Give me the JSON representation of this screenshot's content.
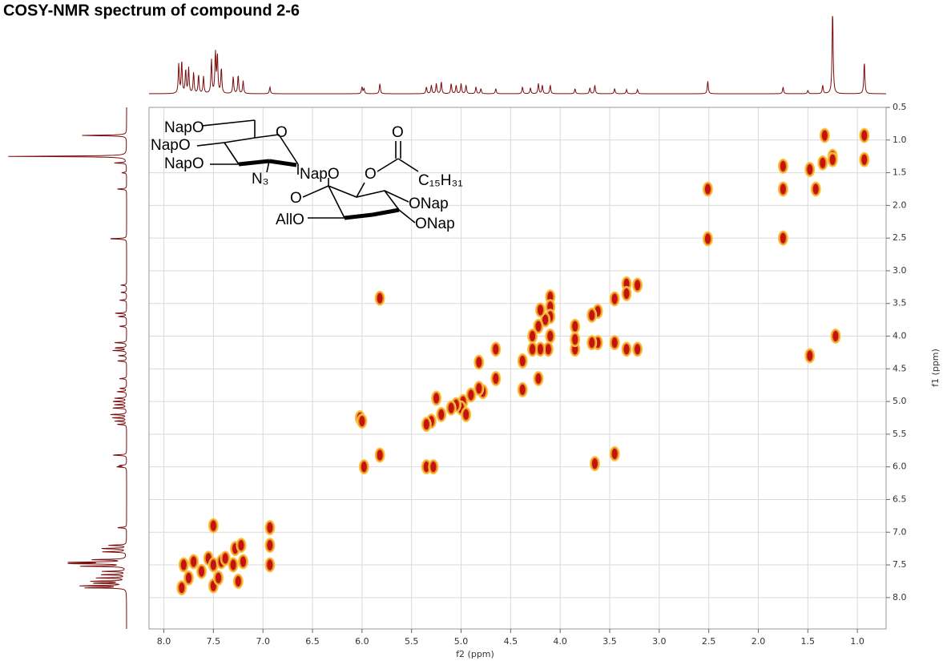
{
  "chart_data": {
    "type": "cosy",
    "title": "COSY-NMR spectrum of compound 2-6",
    "xlabel": "f2 (ppm)",
    "ylabel": "f1 (ppm)",
    "xlim": [
      8.15,
      0.71
    ],
    "ylim": [
      0.5,
      8.48
    ],
    "xticks": [
      {
        "value": 8,
        "label": "8.0"
      },
      7.5,
      {
        "value": 7,
        "label": "7.0"
      },
      6.5,
      {
        "value": 6,
        "label": "6.0"
      },
      5.5,
      {
        "value": 5,
        "label": "5.0"
      },
      4.5,
      {
        "value": 4,
        "label": "4.0"
      },
      3.5,
      {
        "value": 3,
        "label": "3.0"
      },
      2.5,
      {
        "value": 2,
        "label": "2.0"
      },
      1.5,
      {
        "value": 1,
        "label": "1.0"
      }
    ],
    "yticks": [
      0.5,
      {
        "value": 1,
        "label": "1.0"
      },
      1.5,
      {
        "value": 2,
        "label": "2.0"
      },
      2.5,
      {
        "value": 3,
        "label": "3.0"
      },
      3.5,
      {
        "value": 4,
        "label": "4.0"
      },
      4.5,
      {
        "value": 5,
        "label": "5.0"
      },
      5.5,
      {
        "value": 6,
        "label": "6.0"
      },
      6.5,
      {
        "value": 7,
        "label": "7.0"
      },
      7.5,
      {
        "value": 8,
        "label": "8.0"
      }
    ],
    "grid": true,
    "contour_colors": [
      "#f7c948",
      "#f28c28",
      "#c0140c"
    ],
    "projection_color": "#7a0c0c",
    "peaks": {
      "x": [
        0.93,
        0.93,
        1.25,
        1.33,
        1.25,
        1.35,
        1.48,
        1.75,
        1.75,
        1.75,
        1.42,
        2.51,
        2.51,
        3.22,
        3.33,
        3.33,
        3.22,
        3.33,
        3.45,
        3.45,
        3.45,
        3.62,
        3.68,
        3.62,
        3.68,
        3.65,
        3.85,
        3.85,
        3.85,
        4.1,
        4.1,
        4.1,
        4.1,
        4.12,
        4.15,
        4.2,
        4.22,
        4.2,
        4.22,
        4.28,
        4.28,
        4.38,
        4.38,
        4.65,
        4.65,
        4.78,
        4.82,
        4.82,
        4.9,
        4.98,
        5.0,
        5.05,
        5.1,
        5.2,
        5.25,
        5.3,
        5.35,
        4.95,
        5.35,
        5.28,
        5.82,
        5.82,
        5.98,
        6.02,
        6.0,
        6.93,
        6.93,
        6.93,
        7.82,
        7.8,
        7.75,
        7.7,
        7.62,
        7.55,
        7.5,
        7.5,
        7.5,
        7.42,
        7.45,
        7.38,
        7.3,
        7.28,
        7.22,
        7.2,
        7.25,
        1.48,
        1.22
      ],
      "y": [
        0.93,
        1.3,
        1.25,
        0.93,
        1.3,
        1.35,
        1.45,
        1.4,
        1.75,
        2.5,
        1.75,
        1.75,
        2.51,
        3.22,
        3.2,
        3.35,
        4.2,
        4.2,
        3.43,
        4.1,
        5.8,
        3.62,
        3.68,
        4.1,
        4.1,
        5.95,
        3.85,
        4.2,
        4.05,
        3.4,
        3.55,
        3.7,
        4.0,
        4.2,
        3.75,
        3.6,
        3.85,
        4.2,
        4.65,
        4.0,
        4.2,
        4.38,
        4.82,
        4.2,
        4.65,
        4.85,
        4.4,
        4.8,
        4.9,
        5.0,
        5.1,
        5.05,
        5.1,
        5.2,
        4.95,
        5.3,
        5.35,
        5.2,
        6.0,
        6.0,
        3.42,
        5.82,
        6.0,
        5.25,
        5.3,
        6.93,
        7.2,
        7.5,
        7.85,
        7.5,
        7.7,
        7.45,
        7.6,
        7.4,
        6.9,
        7.5,
        7.82,
        7.45,
        7.7,
        7.4,
        7.5,
        7.25,
        7.2,
        7.45,
        7.75,
        4.3,
        4.0
      ]
    },
    "projection": {
      "x": [
        7.85,
        7.82,
        7.78,
        7.75,
        7.7,
        7.65,
        7.6,
        7.52,
        7.48,
        7.46,
        7.42,
        7.3,
        7.25,
        7.2,
        6.93,
        6.0,
        5.98,
        5.82,
        5.35,
        5.3,
        5.25,
        5.2,
        5.1,
        5.05,
        5.0,
        4.95,
        4.85,
        4.8,
        4.65,
        4.38,
        4.3,
        4.22,
        4.18,
        4.1,
        3.85,
        3.7,
        3.65,
        3.45,
        3.33,
        3.22,
        2.51,
        1.75,
        1.5,
        1.35,
        1.25,
        0.93
      ],
      "intensity": [
        35,
        38,
        28,
        30,
        25,
        22,
        20,
        40,
        48,
        45,
        30,
        20,
        22,
        15,
        8,
        8,
        6,
        12,
        8,
        10,
        12,
        14,
        12,
        10,
        12,
        10,
        8,
        6,
        6,
        8,
        7,
        12,
        10,
        10,
        6,
        7,
        10,
        6,
        5,
        5,
        15,
        8,
        4,
        10,
        100,
        38
      ]
    },
    "structure_labels": [
      "NapO",
      "NapO",
      "NapO",
      "O",
      "N₃",
      "NapO",
      "O",
      "O",
      "C₁₅H₃₁",
      "O",
      "AllO",
      "ONap",
      "ONap"
    ]
  }
}
